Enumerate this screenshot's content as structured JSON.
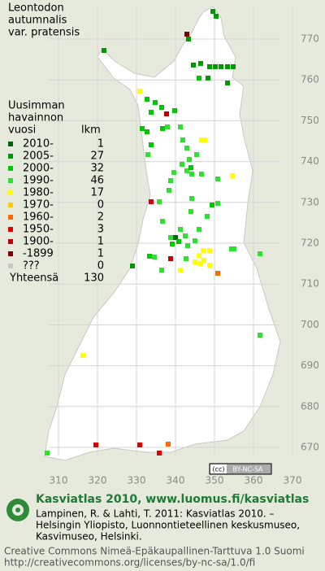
{
  "title": [
    "Leontodon",
    "autumnalis",
    "var. pratensis"
  ],
  "legend": {
    "heading": [
      "Uusimman",
      "havainnon"
    ],
    "col_year": "vuosi",
    "col_count": "lkm",
    "rows": [
      {
        "label": "2010-",
        "count": 1,
        "color": "#006400"
      },
      {
        "label": "2005-",
        "count": 27,
        "color": "#009a00"
      },
      {
        "label": "2000-",
        "count": 32,
        "color": "#00c800"
      },
      {
        "label": "1990-",
        "count": 46,
        "color": "#30e030"
      },
      {
        "label": "1980-",
        "count": 17,
        "color": "#ffff00"
      },
      {
        "label": "1970-",
        "count": 0,
        "color": "#ffcc00"
      },
      {
        "label": "1960-",
        "count": 2,
        "color": "#ff6a00"
      },
      {
        "label": "1950-",
        "count": 3,
        "color": "#e00000"
      },
      {
        "label": "1900-",
        "count": 1,
        "color": "#c00000"
      },
      {
        "label": "-1899",
        "count": 1,
        "color": "#800000"
      },
      {
        "label": "???",
        "count": 0,
        "color": "#c8c8c8"
      }
    ],
    "total_label": "Yhteensä",
    "total": 130
  },
  "grid": {
    "y_labels": [
      "770",
      "760",
      "750",
      "740",
      "730",
      "720",
      "710",
      "700",
      "690",
      "680",
      "670"
    ],
    "x_labels": [
      "310",
      "320",
      "330",
      "340",
      "350",
      "360",
      "370"
    ]
  },
  "badge": {
    "cc": "(cc)",
    "text": "BY-NC-SA"
  },
  "footer": {
    "headline": "Kasviatlas 2010, www.luomus.fi/kasviatlas",
    "citation": [
      "Lampinen, R. & Lahti, T. 2011: Kasviatlas 2010. –",
      "Helsingin Yliopisto, Luonnontieteellinen keskusmuseo,",
      "Kasvimuseo, Helsinki."
    ],
    "license": [
      "Creative Commons Nimeä-Epäkaupallinen-Tarttuva 1.0 Suomi",
      "http://creativecommons.org/licenses/by-nc-sa/1.0/fi"
    ]
  }
}
